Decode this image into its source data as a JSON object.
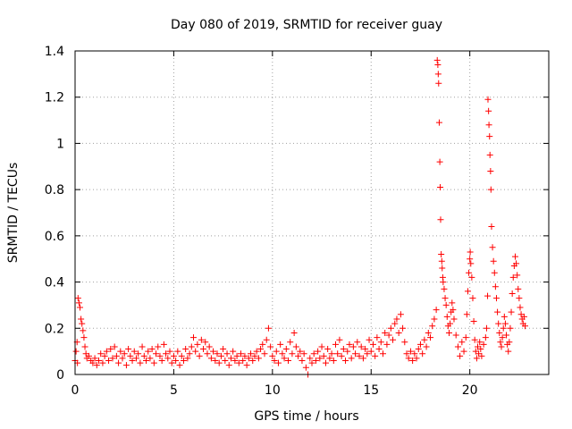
{
  "chart_data": {
    "type": "scatter",
    "title": "Day 080 of 2019, SRMTID for receiver guay",
    "xlabel": "GPS time / hours",
    "ylabel": "SRMTID / TECUs",
    "xlim": [
      0,
      24
    ],
    "ylim": [
      0,
      1.4
    ],
    "xticks": [
      0,
      5,
      10,
      15,
      20
    ],
    "yticks": [
      0,
      0.2,
      0.4,
      0.6,
      0.8,
      1,
      1.2,
      1.4
    ],
    "ytick_labels": [
      "0",
      "0.2",
      "0.4",
      "0.6",
      "0.8",
      "1",
      "1.2",
      "1.4"
    ],
    "grid": true,
    "marker": "plus",
    "color": "#ff0000",
    "series": [
      {
        "name": "SRMTID",
        "points": [
          [
            0.0,
            0.06
          ],
          [
            0.05,
            0.1
          ],
          [
            0.1,
            0.14
          ],
          [
            0.12,
            0.05
          ],
          [
            0.15,
            0.33
          ],
          [
            0.2,
            0.31
          ],
          [
            0.25,
            0.29
          ],
          [
            0.3,
            0.24
          ],
          [
            0.35,
            0.22
          ],
          [
            0.4,
            0.19
          ],
          [
            0.45,
            0.16
          ],
          [
            0.5,
            0.12
          ],
          [
            0.55,
            0.09
          ],
          [
            0.6,
            0.07
          ],
          [
            0.7,
            0.08
          ],
          [
            0.8,
            0.06
          ],
          [
            0.9,
            0.05
          ],
          [
            1.0,
            0.07
          ],
          [
            1.1,
            0.04
          ],
          [
            1.2,
            0.06
          ],
          [
            1.3,
            0.09
          ],
          [
            1.4,
            0.05
          ],
          [
            1.5,
            0.08
          ],
          [
            1.6,
            0.1
          ],
          [
            1.7,
            0.06
          ],
          [
            1.8,
            0.11
          ],
          [
            1.9,
            0.07
          ],
          [
            2.0,
            0.12
          ],
          [
            2.1,
            0.08
          ],
          [
            2.2,
            0.05
          ],
          [
            2.3,
            0.1
          ],
          [
            2.4,
            0.07
          ],
          [
            2.5,
            0.09
          ],
          [
            2.6,
            0.04
          ],
          [
            2.7,
            0.11
          ],
          [
            2.8,
            0.08
          ],
          [
            2.9,
            0.06
          ],
          [
            3.0,
            0.1
          ],
          [
            3.1,
            0.07
          ],
          [
            3.2,
            0.09
          ],
          [
            3.3,
            0.05
          ],
          [
            3.4,
            0.12
          ],
          [
            3.5,
            0.08
          ],
          [
            3.6,
            0.06
          ],
          [
            3.7,
            0.1
          ],
          [
            3.8,
            0.07
          ],
          [
            3.9,
            0.11
          ],
          [
            4.0,
            0.05
          ],
          [
            4.1,
            0.09
          ],
          [
            4.2,
            0.12
          ],
          [
            4.3,
            0.08
          ],
          [
            4.4,
            0.06
          ],
          [
            4.5,
            0.13
          ],
          [
            4.6,
            0.09
          ],
          [
            4.7,
            0.07
          ],
          [
            4.8,
            0.1
          ],
          [
            4.9,
            0.05
          ],
          [
            5.0,
            0.08
          ],
          [
            5.1,
            0.06
          ],
          [
            5.2,
            0.1
          ],
          [
            5.3,
            0.04
          ],
          [
            5.4,
            0.08
          ],
          [
            5.5,
            0.06
          ],
          [
            5.6,
            0.11
          ],
          [
            5.7,
            0.07
          ],
          [
            5.8,
            0.09
          ],
          [
            5.9,
            0.12
          ],
          [
            6.0,
            0.16
          ],
          [
            6.1,
            0.1
          ],
          [
            6.2,
            0.13
          ],
          [
            6.3,
            0.08
          ],
          [
            6.4,
            0.15
          ],
          [
            6.5,
            0.11
          ],
          [
            6.6,
            0.14
          ],
          [
            6.7,
            0.09
          ],
          [
            6.8,
            0.12
          ],
          [
            6.9,
            0.07
          ],
          [
            7.0,
            0.1
          ],
          [
            7.1,
            0.06
          ],
          [
            7.2,
            0.09
          ],
          [
            7.3,
            0.05
          ],
          [
            7.4,
            0.08
          ],
          [
            7.5,
            0.11
          ],
          [
            7.6,
            0.06
          ],
          [
            7.7,
            0.09
          ],
          [
            7.8,
            0.04
          ],
          [
            7.9,
            0.07
          ],
          [
            8.0,
            0.1
          ],
          [
            8.1,
            0.06
          ],
          [
            8.2,
            0.08
          ],
          [
            8.3,
            0.05
          ],
          [
            8.4,
            0.09
          ],
          [
            8.5,
            0.06
          ],
          [
            8.6,
            0.08
          ],
          [
            8.7,
            0.04
          ],
          [
            8.8,
            0.07
          ],
          [
            8.9,
            0.09
          ],
          [
            9.0,
            0.06
          ],
          [
            9.1,
            0.08
          ],
          [
            9.2,
            0.1
          ],
          [
            9.3,
            0.07
          ],
          [
            9.4,
            0.11
          ],
          [
            9.5,
            0.13
          ],
          [
            9.6,
            0.09
          ],
          [
            9.7,
            0.15
          ],
          [
            9.8,
            0.2
          ],
          [
            9.9,
            0.12
          ],
          [
            10.0,
            0.08
          ],
          [
            10.1,
            0.06
          ],
          [
            10.2,
            0.1
          ],
          [
            10.3,
            0.05
          ],
          [
            10.4,
            0.13
          ],
          [
            10.5,
            0.09
          ],
          [
            10.6,
            0.07
          ],
          [
            10.7,
            0.11
          ],
          [
            10.8,
            0.06
          ],
          [
            10.9,
            0.14
          ],
          [
            11.0,
            0.09
          ],
          [
            11.1,
            0.18
          ],
          [
            11.2,
            0.12
          ],
          [
            11.3,
            0.08
          ],
          [
            11.4,
            0.1
          ],
          [
            11.5,
            0.06
          ],
          [
            11.6,
            0.09
          ],
          [
            11.7,
            0.03
          ],
          [
            11.8,
            0.0
          ],
          [
            11.9,
            0.07
          ],
          [
            12.0,
            0.05
          ],
          [
            12.1,
            0.09
          ],
          [
            12.2,
            0.06
          ],
          [
            12.3,
            0.1
          ],
          [
            12.4,
            0.07
          ],
          [
            12.5,
            0.12
          ],
          [
            12.6,
            0.08
          ],
          [
            12.7,
            0.05
          ],
          [
            12.8,
            0.11
          ],
          [
            12.9,
            0.07
          ],
          [
            13.0,
            0.09
          ],
          [
            13.1,
            0.06
          ],
          [
            13.2,
            0.13
          ],
          [
            13.3,
            0.09
          ],
          [
            13.4,
            0.15
          ],
          [
            13.5,
            0.08
          ],
          [
            13.6,
            0.11
          ],
          [
            13.7,
            0.06
          ],
          [
            13.8,
            0.1
          ],
          [
            13.9,
            0.13
          ],
          [
            14.0,
            0.07
          ],
          [
            14.1,
            0.12
          ],
          [
            14.2,
            0.09
          ],
          [
            14.3,
            0.14
          ],
          [
            14.4,
            0.08
          ],
          [
            14.5,
            0.12
          ],
          [
            14.6,
            0.07
          ],
          [
            14.7,
            0.11
          ],
          [
            14.8,
            0.09
          ],
          [
            14.9,
            0.15
          ],
          [
            15.0,
            0.1
          ],
          [
            15.1,
            0.13
          ],
          [
            15.2,
            0.08
          ],
          [
            15.3,
            0.16
          ],
          [
            15.4,
            0.11
          ],
          [
            15.5,
            0.14
          ],
          [
            15.6,
            0.09
          ],
          [
            15.7,
            0.18
          ],
          [
            15.8,
            0.13
          ],
          [
            15.9,
            0.17
          ],
          [
            16.0,
            0.2
          ],
          [
            16.1,
            0.15
          ],
          [
            16.2,
            0.22
          ],
          [
            16.3,
            0.24
          ],
          [
            16.4,
            0.18
          ],
          [
            16.5,
            0.26
          ],
          [
            16.6,
            0.2
          ],
          [
            16.7,
            0.14
          ],
          [
            16.8,
            0.09
          ],
          [
            16.9,
            0.07
          ],
          [
            17.0,
            0.1
          ],
          [
            17.1,
            0.06
          ],
          [
            17.2,
            0.09
          ],
          [
            17.3,
            0.07
          ],
          [
            17.4,
            0.11
          ],
          [
            17.5,
            0.13
          ],
          [
            17.6,
            0.09
          ],
          [
            17.7,
            0.15
          ],
          [
            17.8,
            0.12
          ],
          [
            17.9,
            0.18
          ],
          [
            18.0,
            0.16
          ],
          [
            18.1,
            0.21
          ],
          [
            18.2,
            0.24
          ],
          [
            18.3,
            0.28
          ],
          [
            18.35,
            1.36
          ],
          [
            18.38,
            1.34
          ],
          [
            18.4,
            1.3
          ],
          [
            18.42,
            1.26
          ],
          [
            18.45,
            1.09
          ],
          [
            18.48,
            0.92
          ],
          [
            18.5,
            0.81
          ],
          [
            18.52,
            0.67
          ],
          [
            18.55,
            0.52
          ],
          [
            18.58,
            0.49
          ],
          [
            18.6,
            0.46
          ],
          [
            18.63,
            0.42
          ],
          [
            18.65,
            0.4
          ],
          [
            18.7,
            0.37
          ],
          [
            18.75,
            0.33
          ],
          [
            18.8,
            0.3
          ],
          [
            18.85,
            0.25
          ],
          [
            18.9,
            0.21
          ],
          [
            18.95,
            0.18
          ],
          [
            19.0,
            0.22
          ],
          [
            19.05,
            0.27
          ],
          [
            19.1,
            0.31
          ],
          [
            19.15,
            0.28
          ],
          [
            19.2,
            0.24
          ],
          [
            19.3,
            0.17
          ],
          [
            19.4,
            0.12
          ],
          [
            19.5,
            0.08
          ],
          [
            19.6,
            0.14
          ],
          [
            19.7,
            0.1
          ],
          [
            19.8,
            0.16
          ],
          [
            19.85,
            0.26
          ],
          [
            19.9,
            0.36
          ],
          [
            19.95,
            0.44
          ],
          [
            20.0,
            0.5
          ],
          [
            20.02,
            0.53
          ],
          [
            20.05,
            0.48
          ],
          [
            20.1,
            0.42
          ],
          [
            20.15,
            0.33
          ],
          [
            20.2,
            0.23
          ],
          [
            20.25,
            0.15
          ],
          [
            20.3,
            0.1
          ],
          [
            20.35,
            0.07
          ],
          [
            20.4,
            0.12
          ],
          [
            20.45,
            0.09
          ],
          [
            20.5,
            0.14
          ],
          [
            20.55,
            0.11
          ],
          [
            20.6,
            0.08
          ],
          [
            20.7,
            0.13
          ],
          [
            20.8,
            0.16
          ],
          [
            20.85,
            0.2
          ],
          [
            20.9,
            0.34
          ],
          [
            20.92,
            1.19
          ],
          [
            20.95,
            1.14
          ],
          [
            20.97,
            1.08
          ],
          [
            21.0,
            1.03
          ],
          [
            21.02,
            0.95
          ],
          [
            21.05,
            0.88
          ],
          [
            21.07,
            0.8
          ],
          [
            21.1,
            0.64
          ],
          [
            21.15,
            0.55
          ],
          [
            21.2,
            0.49
          ],
          [
            21.25,
            0.44
          ],
          [
            21.3,
            0.38
          ],
          [
            21.35,
            0.33
          ],
          [
            21.4,
            0.27
          ],
          [
            21.45,
            0.22
          ],
          [
            21.5,
            0.18
          ],
          [
            21.55,
            0.14
          ],
          [
            21.6,
            0.12
          ],
          [
            21.65,
            0.16
          ],
          [
            21.7,
            0.2
          ],
          [
            21.75,
            0.25
          ],
          [
            21.8,
            0.22
          ],
          [
            21.85,
            0.17
          ],
          [
            21.9,
            0.13
          ],
          [
            21.95,
            0.1
          ],
          [
            22.0,
            0.14
          ],
          [
            22.05,
            0.2
          ],
          [
            22.1,
            0.27
          ],
          [
            22.15,
            0.35
          ],
          [
            22.2,
            0.42
          ],
          [
            22.25,
            0.47
          ],
          [
            22.3,
            0.51
          ],
          [
            22.35,
            0.48
          ],
          [
            22.4,
            0.43
          ],
          [
            22.45,
            0.37
          ],
          [
            22.5,
            0.33
          ],
          [
            22.55,
            0.29
          ],
          [
            22.6,
            0.26
          ],
          [
            22.65,
            0.24
          ],
          [
            22.7,
            0.22
          ],
          [
            22.75,
            0.25
          ],
          [
            22.8,
            0.21
          ]
        ]
      }
    ]
  }
}
